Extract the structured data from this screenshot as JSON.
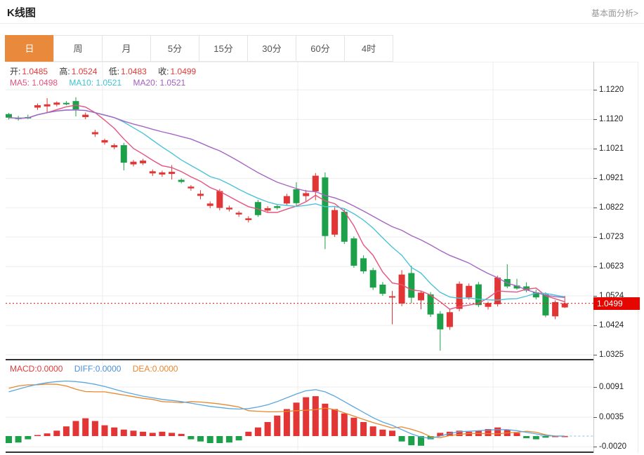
{
  "page": {
    "title": "K线图",
    "link": "基本面分析>"
  },
  "tabs": [
    {
      "label": "日",
      "active": true
    },
    {
      "label": "周",
      "active": false
    },
    {
      "label": "月",
      "active": false
    },
    {
      "label": "5分",
      "active": false
    },
    {
      "label": "15分",
      "active": false
    },
    {
      "label": "30分",
      "active": false
    },
    {
      "label": "60分",
      "active": false
    },
    {
      "label": "4时",
      "active": false
    }
  ],
  "legend": {
    "ohlc": [
      {
        "label": "开:",
        "value": "1.0485"
      },
      {
        "label": "高:",
        "value": "1.0524"
      },
      {
        "label": "低:",
        "value": "1.0483"
      },
      {
        "label": "收:",
        "value": "1.0499"
      }
    ],
    "ma": [
      {
        "label": "MA5:",
        "value": "1.0498",
        "color": "#e5537e"
      },
      {
        "label": "MA10:",
        "value": "1.0521",
        "color": "#3fc1d1"
      },
      {
        "label": "MA20:",
        "value": "1.0521",
        "color": "#a05fc0"
      }
    ],
    "macd": [
      {
        "label": "MACD:",
        "value": "0.0000",
        "color": "#e23b3b"
      },
      {
        "label": "DIFF:",
        "value": "0.0000",
        "color": "#4a90d9"
      },
      {
        "label": "DEA:",
        "value": "0.0000",
        "color": "#e8882e"
      }
    ]
  },
  "chart_data": {
    "type": "candlestick",
    "title": "K线图",
    "legend_position": "top-left",
    "grid": true,
    "price_axis": {
      "ticks": [
        1.122,
        1.112,
        1.1021,
        1.0921,
        1.0822,
        1.0723,
        1.0623,
        1.0524,
        1.0424,
        1.0325
      ],
      "top_price": 1.1315,
      "bottom_price": 1.0311
    },
    "macd_axis": {
      "ticks": [
        0.0091,
        0.0035,
        -0.002
      ]
    },
    "current_price": 1.0499,
    "current_price_label": "1.0499",
    "colors": {
      "up": "#e23535",
      "down": "#1ca04a",
      "ma5": "#e5537e",
      "ma10": "#4cc3d9",
      "ma20": "#a566c3",
      "diff": "#5aa7e0",
      "dea": "#e8882e",
      "price_line": "#f01111",
      "tag_bg": "#e60600",
      "tab_active": "#e8893c"
    },
    "candles": [
      [
        1.1138,
        1.1142,
        1.112,
        1.1126
      ],
      [
        1.1126,
        1.1132,
        1.1116,
        1.1122
      ],
      [
        1.1128,
        1.1136,
        1.1121,
        1.1127
      ],
      [
        1.116,
        1.1174,
        1.1152,
        1.1168
      ],
      [
        1.1164,
        1.1192,
        1.1142,
        1.1171
      ],
      [
        1.117,
        1.1181,
        1.1164,
        1.1177
      ],
      [
        1.1176,
        1.1182,
        1.1168,
        1.1171
      ],
      [
        1.1182,
        1.1195,
        1.113,
        1.1154
      ],
      [
        1.1128,
        1.1143,
        1.1121,
        1.1136
      ],
      [
        1.107,
        1.1085,
        1.1061,
        1.1077
      ],
      [
        1.1042,
        1.1055,
        1.1035,
        1.105
      ],
      [
        1.1026,
        1.1039,
        1.1019,
        1.1033
      ],
      [
        1.1033,
        1.1041,
        1.0948,
        1.0974
      ],
      [
        1.0968,
        1.0983,
        1.0961,
        1.0977
      ],
      [
        1.0972,
        1.0987,
        1.0966,
        1.0981
      ],
      [
        1.0938,
        1.0951,
        1.0929,
        1.0945
      ],
      [
        1.0934,
        1.0947,
        1.0926,
        1.0941
      ],
      [
        1.0936,
        1.0966,
        1.0917,
        1.0943
      ],
      [
        1.0916,
        1.0921,
        1.0904,
        1.0909
      ],
      [
        1.0887,
        1.0898,
        1.0879,
        1.0893
      ],
      [
        1.0862,
        1.0881,
        1.085,
        1.0869
      ],
      [
        1.0828,
        1.0843,
        1.082,
        1.0836
      ],
      [
        1.0821,
        1.0885,
        1.0813,
        1.0878
      ],
      [
        1.0816,
        1.0829,
        1.0809,
        1.0822
      ],
      [
        1.0799,
        1.0811,
        1.0791,
        1.0805
      ],
      [
        1.078,
        1.0793,
        1.0772,
        1.0786
      ],
      [
        1.0841,
        1.0848,
        1.0791,
        1.0797
      ],
      [
        1.0812,
        1.0827,
        1.0806,
        1.082
      ],
      [
        1.0827,
        1.0832,
        1.0815,
        1.0821
      ],
      [
        1.0836,
        1.0869,
        1.083,
        1.0861
      ],
      [
        1.0884,
        1.0908,
        1.0826,
        1.0837
      ],
      [
        1.0861,
        1.0882,
        1.0843,
        1.0871
      ],
      [
        1.0877,
        1.0939,
        1.0847,
        1.093
      ],
      [
        1.0924,
        1.0941,
        1.0682,
        1.0726
      ],
      [
        1.0731,
        1.0824,
        1.0723,
        1.0814
      ],
      [
        1.0808,
        1.0816,
        1.0699,
        1.0707
      ],
      [
        1.0718,
        1.0725,
        1.0619,
        1.0626
      ],
      [
        1.0651,
        1.0661,
        1.0599,
        1.0607
      ],
      [
        1.0611,
        1.0619,
        1.0544,
        1.0552
      ],
      [
        1.0562,
        1.0571,
        1.0524,
        1.0531
      ],
      [
        1.0519,
        1.0541,
        1.0428,
        1.0523
      ],
      [
        1.0498,
        1.0611,
        1.0489,
        1.0596
      ],
      [
        1.0601,
        1.0626,
        1.0499,
        1.0518
      ],
      [
        1.0509,
        1.0541,
        1.0479,
        1.0535
      ],
      [
        1.0529,
        1.0537,
        1.0453,
        1.0461
      ],
      [
        1.0464,
        1.0473,
        1.0339,
        1.0411
      ],
      [
        1.0419,
        1.0481,
        1.0409,
        1.0469
      ],
      [
        1.048,
        1.0573,
        1.0472,
        1.0565
      ],
      [
        1.0519,
        1.0566,
        1.0511,
        1.0558
      ],
      [
        1.0563,
        1.0571,
        1.0486,
        1.0493
      ],
      [
        1.0487,
        1.0505,
        1.0478,
        1.05
      ],
      [
        1.0496,
        1.0592,
        1.0488,
        1.0586
      ],
      [
        1.0581,
        1.0631,
        1.055,
        1.0556
      ],
      [
        1.0559,
        1.0582,
        1.0545,
        1.0549
      ],
      [
        1.0556,
        1.057,
        1.0536,
        1.0542
      ],
      [
        1.0536,
        1.0545,
        1.0512,
        1.0519
      ],
      [
        1.0529,
        1.0536,
        1.0452,
        1.0458
      ],
      [
        1.0455,
        1.0509,
        1.0445,
        1.0503
      ],
      [
        1.0485,
        1.0524,
        1.0483,
        1.0499
      ]
    ],
    "macd": {
      "diff": [
        0.0082,
        0.0087,
        0.0092,
        0.0096,
        0.0099,
        0.0101,
        0.0102,
        0.0101,
        0.0099,
        0.0096,
        0.0092,
        0.0087,
        0.0082,
        0.0078,
        0.0074,
        0.0071,
        0.0068,
        0.0066,
        0.0064,
        0.0061,
        0.0058,
        0.0055,
        0.0053,
        0.0051,
        0.005,
        0.0051,
        0.0054,
        0.0058,
        0.0064,
        0.0071,
        0.0078,
        0.0084,
        0.0086,
        0.0082,
        0.0074,
        0.0064,
        0.0054,
        0.0044,
        0.0034,
        0.0026,
        0.002,
        0.0012,
        0.0004,
        -0.0002,
        -0.0004,
        0.0,
        0.0005,
        0.0008,
        0.0009,
        0.001,
        0.0011,
        0.0012,
        0.0012,
        0.001,
        0.0007,
        0.0004,
        0.0001,
        0.0,
        0.0
      ],
      "hist": [
        -0.0013,
        -0.0012,
        -0.0006,
        0.0002,
        0.0005,
        0.001,
        0.0018,
        0.0028,
        0.0033,
        0.0028,
        0.002,
        0.0016,
        0.0012,
        0.001,
        0.0008,
        0.0006,
        0.0008,
        0.0006,
        0.0004,
        -0.0006,
        -0.001,
        -0.0013,
        -0.0013,
        -0.0012,
        -0.0008,
        0.0008,
        0.0016,
        0.0026,
        0.0038,
        0.005,
        0.0062,
        0.0072,
        0.0074,
        0.006,
        0.005,
        0.0042,
        0.0034,
        0.0026,
        0.0018,
        0.0012,
        0.001,
        -0.001,
        -0.0017,
        -0.0018,
        -0.0006,
        0.0006,
        0.0008,
        0.001,
        0.0008,
        0.001,
        0.0013,
        0.0016,
        0.0012,
        0.0006,
        -0.0004,
        -0.0006,
        -0.0003,
        0.0,
        0.0
      ]
    }
  }
}
